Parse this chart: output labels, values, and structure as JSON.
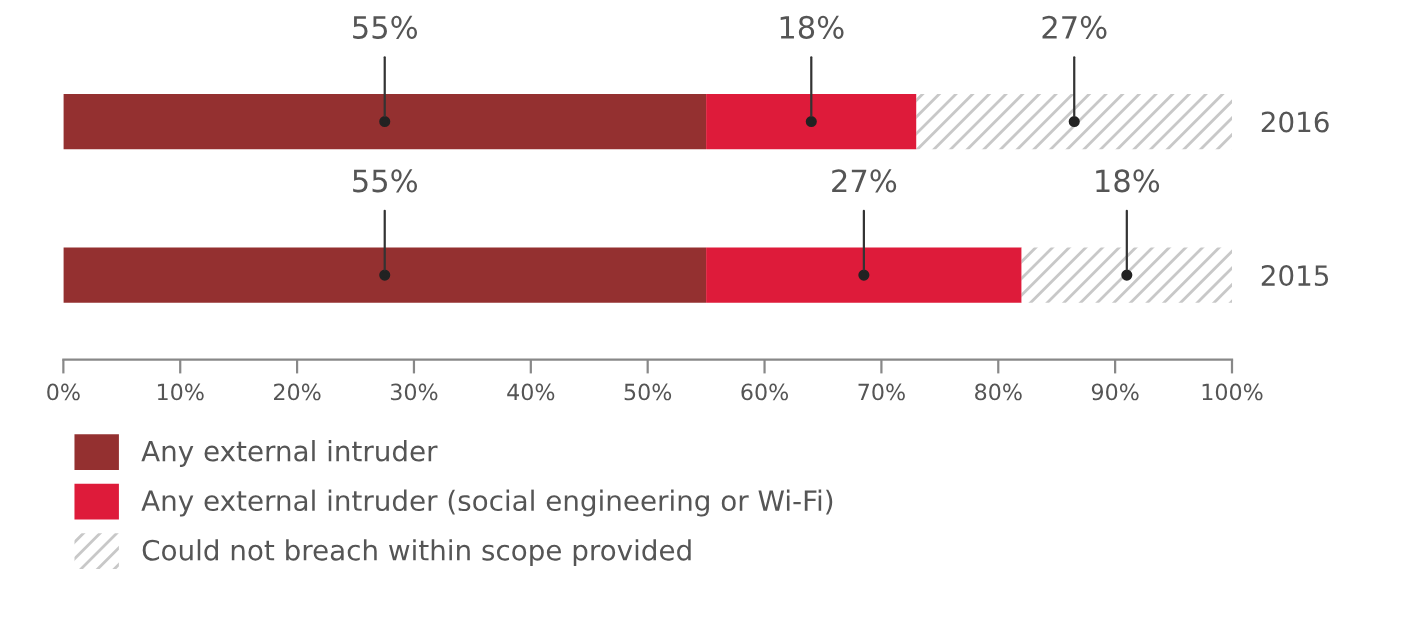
{
  "chart_data": {
    "type": "bar",
    "orientation": "horizontal",
    "stacked": true,
    "categories": [
      "2016",
      "2015"
    ],
    "series": [
      {
        "name": "Any external intruder",
        "color": "#943030",
        "values": [
          55,
          55
        ],
        "value_labels": [
          "55%",
          "55%"
        ]
      },
      {
        "name": "Any external intruder (social engineering or Wi-Fi)",
        "color": "#de1b3a",
        "values": [
          18,
          27
        ],
        "value_labels": [
          "18%",
          "27%"
        ]
      },
      {
        "name": "Could not breach within scope provided",
        "color": "#c8c8c8",
        "values": [
          27,
          18
        ],
        "value_labels": [
          "27%",
          "18%"
        ]
      }
    ],
    "xlim": [
      0,
      100
    ],
    "xticks": [
      {
        "value": 0,
        "label": "0%"
      },
      {
        "value": 10,
        "label": "10%"
      },
      {
        "value": 20,
        "label": "20%"
      },
      {
        "value": 30,
        "label": "30%"
      },
      {
        "value": 40,
        "label": "40%"
      },
      {
        "value": 50,
        "label": "50%"
      },
      {
        "value": 60,
        "label": "60%"
      },
      {
        "value": 70,
        "label": "70%"
      },
      {
        "value": 80,
        "label": "80%"
      },
      {
        "value": 90,
        "label": "90%"
      },
      {
        "value": 100,
        "label": "100%"
      }
    ],
    "grid": false,
    "legend": "bottom"
  }
}
